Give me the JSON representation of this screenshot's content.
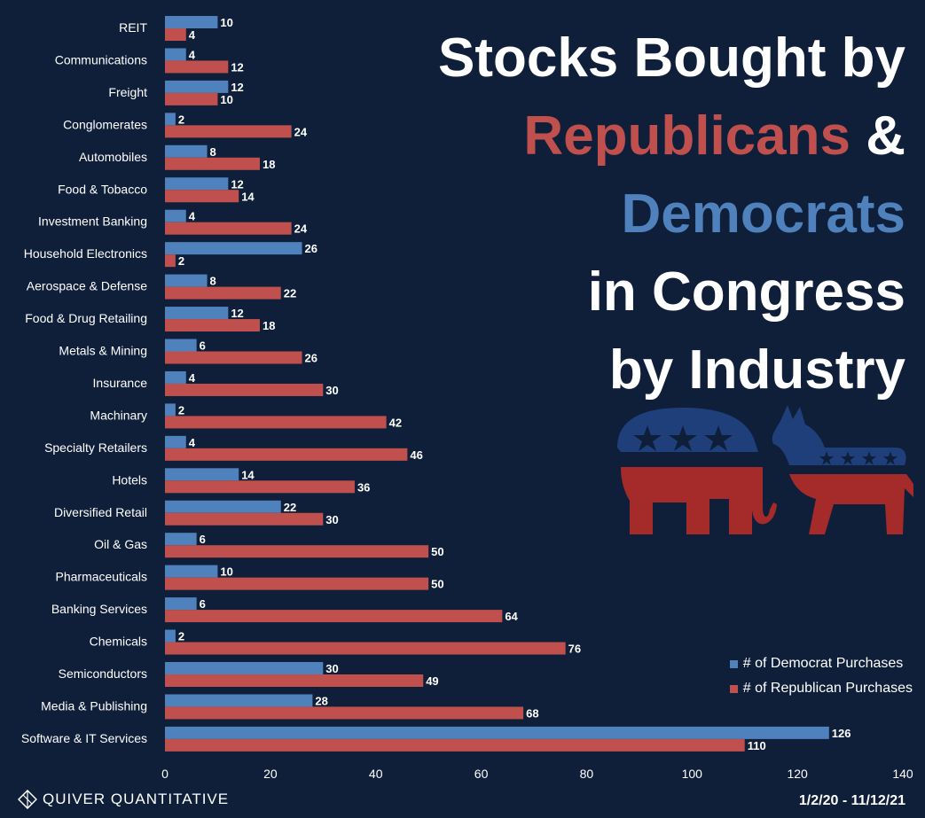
{
  "title": {
    "line1": "Stocks Bought by",
    "line2_rep": "Republicans",
    "line2_amp": " &",
    "line3_dem": "Democrats",
    "line4": "in Congress",
    "line5": "by Industry"
  },
  "brand": {
    "name": "QUIVER QUANTITATIVE",
    "icon": "quiver-logo-icon"
  },
  "date_range": "1/2/20 - 11/12/21",
  "mascots": {
    "republican": "elephant-icon",
    "democrat": "donkey-icon"
  },
  "colors": {
    "background": "#0f1f3a",
    "democrat": "#4f81bd",
    "republican": "#c0504d"
  },
  "chart_data": {
    "type": "bar",
    "orientation": "horizontal",
    "categories": [
      "REIT",
      "Communications",
      "Freight",
      "Conglomerates",
      "Automobiles",
      "Food & Tobacco",
      "Investment Banking",
      "Household Electronics",
      "Aerospace & Defense",
      "Food & Drug Retailing",
      "Metals & Mining",
      "Insurance",
      "Machinary",
      "Specialty Retailers",
      "Hotels",
      "Diversified Retail",
      "Oil & Gas",
      "Pharmaceuticals",
      "Banking Services",
      "Chemicals",
      "Semiconductors",
      "Media & Publishing",
      "Software & IT Services"
    ],
    "series": [
      {
        "name": "# of Democrat Purchases",
        "color": "#4f81bd",
        "values": [
          10,
          4,
          12,
          2,
          8,
          12,
          4,
          26,
          8,
          12,
          6,
          4,
          2,
          4,
          14,
          22,
          6,
          10,
          6,
          2,
          30,
          28,
          126
        ]
      },
      {
        "name": "# of Republican Purchases",
        "color": "#c0504d",
        "values": [
          4,
          12,
          10,
          24,
          18,
          14,
          24,
          2,
          22,
          18,
          26,
          30,
          42,
          46,
          36,
          30,
          50,
          50,
          64,
          76,
          49,
          68,
          110
        ]
      }
    ],
    "xlim": [
      0,
      140
    ],
    "xticks": [
      0,
      20,
      40,
      60,
      80,
      100,
      120,
      140
    ],
    "grid": false,
    "legend_position": "bottom-right"
  }
}
